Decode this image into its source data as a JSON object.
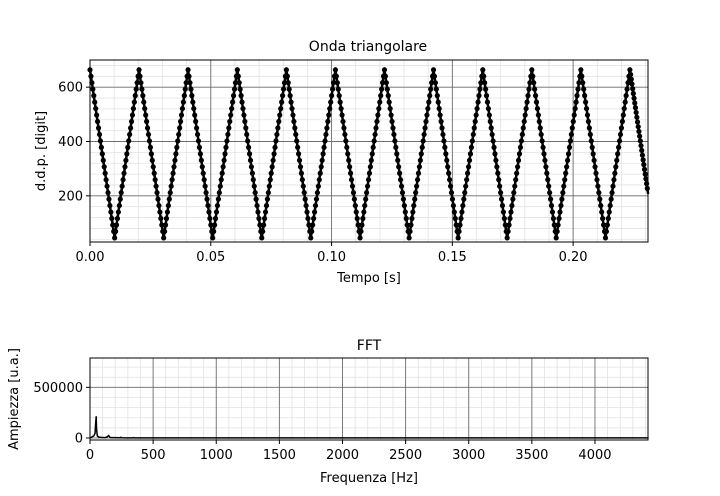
{
  "chart_data": [
    {
      "type": "line",
      "title": "Onda triangolare",
      "xlabel": "Tempo [s]",
      "ylabel": "d.d.p. [digit]",
      "xlim": [
        0,
        0.231
      ],
      "ylim": [
        30,
        700
      ],
      "xticks": [
        "0.00",
        "0.05",
        "0.10",
        "0.15",
        "0.20"
      ],
      "yticks": [
        "200",
        "400",
        "600"
      ],
      "grid": true,
      "marker": "point",
      "color": "#000000",
      "series": [
        {
          "x": [
            0.0,
            0.0102,
            0.0203,
            0.0305,
            0.0406,
            0.0508,
            0.061,
            0.0711,
            0.0813,
            0.0914,
            0.1016,
            0.1118,
            0.1219,
            0.1321,
            0.1422,
            0.1524,
            0.1626,
            0.1727,
            0.1829,
            0.193,
            0.2032,
            0.2134,
            0.2235,
            0.231
          ],
          "y": [
            664,
            45,
            664,
            45,
            664,
            45,
            664,
            45,
            664,
            45,
            664,
            45,
            664,
            45,
            664,
            45,
            664,
            45,
            664,
            45,
            664,
            45,
            664,
            210
          ]
        }
      ]
    },
    {
      "type": "line",
      "title": "FFT",
      "xlabel": "Frequenza [Hz]",
      "ylabel": "Ampiezza [u.a.]",
      "xlim": [
        0,
        4420
      ],
      "ylim": [
        -20000,
        790000
      ],
      "xticks": [
        "0",
        "500",
        "1000",
        "1500",
        "2000",
        "2500",
        "3000",
        "3500",
        "4000"
      ],
      "yticks": [
        "0",
        "500000"
      ],
      "grid": true,
      "color": "#000000",
      "series": [
        {
          "x": [
            0,
            10,
            20,
            30,
            40,
            45,
            49,
            52,
            58,
            70,
            90,
            120,
            138,
            147,
            160,
            200,
            240,
            245,
            250,
            300,
            340,
            345,
            350,
            400,
            500,
            1000,
            2000,
            3000,
            4000,
            4420
          ],
          "y": [
            0,
            5000,
            15000,
            20000,
            45000,
            150000,
            210000,
            90000,
            20000,
            8000,
            6000,
            4000,
            12000,
            25000,
            5000,
            3000,
            2000,
            8000,
            2000,
            1500,
            1500,
            4000,
            1500,
            1000,
            1000,
            800,
            600,
            500,
            400,
            400
          ]
        }
      ]
    }
  ]
}
